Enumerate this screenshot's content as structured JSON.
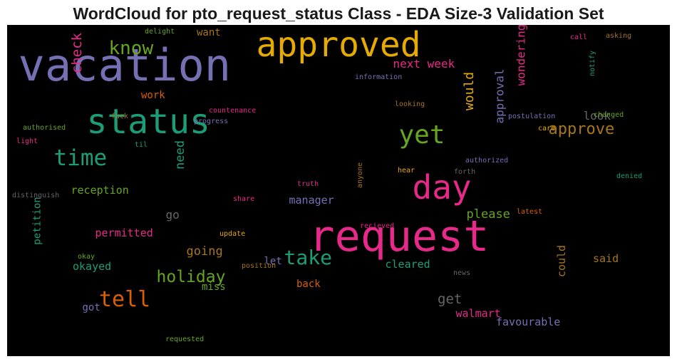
{
  "title": "WordCloud for pto_request_status Class - EDA Size-3 Validation Set",
  "chart_data": {
    "type": "wordcloud",
    "background": "#000000",
    "words": [
      {
        "text": "vacation",
        "color": "#7570b3",
        "weight": 62,
        "vertical": false,
        "pos": "top-left"
      },
      {
        "text": "request",
        "color": "#e7298a",
        "weight": 60,
        "vertical": false,
        "pos": "bottom-right"
      },
      {
        "text": "approved",
        "color": "#e6ab02",
        "weight": 48,
        "vertical": false,
        "pos": "top-center"
      },
      {
        "text": "status",
        "color": "#1b9e77",
        "weight": 48,
        "vertical": false,
        "pos": "center"
      },
      {
        "text": "day",
        "color": "#e7298a",
        "weight": 46,
        "vertical": false,
        "pos": "center-right"
      },
      {
        "text": "yet",
        "color": "#66a61e",
        "weight": 36,
        "vertical": false,
        "pos": "center"
      },
      {
        "text": "time",
        "color": "#1b9e77",
        "weight": 31,
        "vertical": false,
        "pos": "center-left"
      },
      {
        "text": "tell",
        "color": "#d95f02",
        "weight": 30,
        "vertical": false,
        "pos": "bottom-left"
      },
      {
        "text": "take",
        "color": "#1b9e77",
        "weight": 28,
        "vertical": false,
        "pos": "bottom-center"
      },
      {
        "text": "know",
        "color": "#66a61e",
        "weight": 26,
        "vertical": false,
        "pos": "top-left"
      },
      {
        "text": "holiday",
        "color": "#66a61e",
        "weight": 23,
        "vertical": false,
        "pos": "bottom-left"
      },
      {
        "text": "approve",
        "color": "#a6761d",
        "weight": 22,
        "vertical": false,
        "pos": "center-right"
      },
      {
        "text": "check",
        "color": "#e7298a",
        "weight": 19,
        "vertical": true,
        "pos": "top-left"
      },
      {
        "text": "would",
        "color": "#e6ab02",
        "weight": 18,
        "vertical": true,
        "pos": "center"
      },
      {
        "text": "approval",
        "color": "#7570b3",
        "weight": 16,
        "vertical": true,
        "pos": "center-right"
      },
      {
        "text": "wondering",
        "color": "#e7298a",
        "weight": 16,
        "vertical": true,
        "pos": "top-right"
      },
      {
        "text": "next week",
        "color": "#e7298a",
        "weight": 16,
        "vertical": false,
        "pos": "top-center"
      },
      {
        "text": "need",
        "color": "#1b9e77",
        "weight": 17,
        "vertical": true,
        "pos": "center-left"
      },
      {
        "text": "please",
        "color": "#66a61e",
        "weight": 17,
        "vertical": false,
        "pos": "center"
      },
      {
        "text": "get",
        "color": "#666666",
        "weight": 19,
        "vertical": false,
        "pos": "bottom-center"
      },
      {
        "text": "going",
        "color": "#a6761d",
        "weight": 17,
        "vertical": false,
        "pos": "bottom-left"
      },
      {
        "text": "look",
        "color": "#666666",
        "weight": 16,
        "vertical": false,
        "pos": "center-right"
      },
      {
        "text": "reception",
        "color": "#66a61e",
        "weight": 15,
        "vertical": false,
        "pos": "center-left"
      },
      {
        "text": "manager",
        "color": "#7570b3",
        "weight": 15,
        "vertical": false,
        "pos": "center"
      },
      {
        "text": "permitted",
        "color": "#e7298a",
        "weight": 15,
        "vertical": false,
        "pos": "bottom-left"
      },
      {
        "text": "cleared",
        "color": "#1b9e77",
        "weight": 15,
        "vertical": false,
        "pos": "bottom-center"
      },
      {
        "text": "okayed",
        "color": "#1b9e77",
        "weight": 15,
        "vertical": false,
        "pos": "bottom-left"
      },
      {
        "text": "walmart",
        "color": "#e7298a",
        "weight": 15,
        "vertical": false,
        "pos": "bottom-center"
      },
      {
        "text": "favourable",
        "color": "#7570b3",
        "weight": 15,
        "vertical": false,
        "pos": "bottom-right"
      },
      {
        "text": "said",
        "color": "#a6761d",
        "weight": 15,
        "vertical": false,
        "pos": "bottom-right"
      },
      {
        "text": "could",
        "color": "#a6761d",
        "weight": 15,
        "vertical": true,
        "pos": "bottom-right"
      },
      {
        "text": "go",
        "color": "#666666",
        "weight": 16,
        "vertical": false,
        "pos": "center-left"
      },
      {
        "text": "want",
        "color": "#a6761d",
        "weight": 14,
        "vertical": false,
        "pos": "top-left"
      },
      {
        "text": "work",
        "color": "#d95f02",
        "weight": 14,
        "vertical": false,
        "pos": "center-left"
      },
      {
        "text": "let",
        "color": "#7570b3",
        "weight": 14,
        "vertical": false,
        "pos": "bottom-center"
      },
      {
        "text": "miss",
        "color": "#66a61e",
        "weight": 14,
        "vertical": false,
        "pos": "bottom-left"
      },
      {
        "text": "back",
        "color": "#d95f02",
        "weight": 14,
        "vertical": false,
        "pos": "bottom-center"
      },
      {
        "text": "got",
        "color": "#7570b3",
        "weight": 14,
        "vertical": false,
        "pos": "bottom-left"
      },
      {
        "text": "petition",
        "color": "#1b9e77",
        "weight": 14,
        "vertical": true,
        "pos": "bottom-left"
      },
      {
        "text": "delight",
        "color": "#66a61e",
        "weight": 10,
        "vertical": false,
        "pos": "top-left"
      },
      {
        "text": "call",
        "color": "#e7298a",
        "weight": 10,
        "vertical": false,
        "pos": "top-right"
      },
      {
        "text": "asking",
        "color": "#a6761d",
        "weight": 10,
        "vertical": false,
        "pos": "top-right"
      },
      {
        "text": "information",
        "color": "#7570b3",
        "weight": 10,
        "vertical": false,
        "pos": "top-center"
      },
      {
        "text": "notify",
        "color": "#1b9e77",
        "weight": 10,
        "vertical": true,
        "pos": "top-right"
      },
      {
        "text": "looking",
        "color": "#a6761d",
        "weight": 10,
        "vertical": false,
        "pos": "center"
      },
      {
        "text": "fuck",
        "color": "#a6761d",
        "weight": 10,
        "vertical": false,
        "pos": "center-left"
      },
      {
        "text": "countenance",
        "color": "#e7298a",
        "weight": 10,
        "vertical": false,
        "pos": "center"
      },
      {
        "text": "progress",
        "color": "#7570b3",
        "weight": 10,
        "vertical": false,
        "pos": "center"
      },
      {
        "text": "postulation",
        "color": "#7570b3",
        "weight": 10,
        "vertical": false,
        "pos": "center-right"
      },
      {
        "text": "changed",
        "color": "#66a61e",
        "weight": 10,
        "vertical": false,
        "pos": "center-right"
      },
      {
        "text": "care",
        "color": "#e6ab02",
        "weight": 10,
        "vertical": false,
        "pos": "center-right"
      },
      {
        "text": "authorised",
        "color": "#66a61e",
        "weight": 10,
        "vertical": false,
        "pos": "center-left"
      },
      {
        "text": "light",
        "color": "#e7298a",
        "weight": 10,
        "vertical": false,
        "pos": "center-left"
      },
      {
        "text": "til",
        "color": "#1b9e77",
        "weight": 10,
        "vertical": false,
        "pos": "center-left"
      },
      {
        "text": "authorized",
        "color": "#7570b3",
        "weight": 10,
        "vertical": false,
        "pos": "center-right"
      },
      {
        "text": "anyone",
        "color": "#a6761d",
        "weight": 10,
        "vertical": true,
        "pos": "center"
      },
      {
        "text": "hear",
        "color": "#e6ab02",
        "weight": 10,
        "vertical": false,
        "pos": "center"
      },
      {
        "text": "forth",
        "color": "#666666",
        "weight": 10,
        "vertical": false,
        "pos": "center-right"
      },
      {
        "text": "denied",
        "color": "#1b9e77",
        "weight": 10,
        "vertical": false,
        "pos": "center-right"
      },
      {
        "text": "truth",
        "color": "#e7298a",
        "weight": 10,
        "vertical": false,
        "pos": "center"
      },
      {
        "text": "distinguish",
        "color": "#666666",
        "weight": 10,
        "vertical": false,
        "pos": "center-left"
      },
      {
        "text": "share",
        "color": "#e7298a",
        "weight": 10,
        "vertical": false,
        "pos": "center"
      },
      {
        "text": "latest",
        "color": "#d95f02",
        "weight": 10,
        "vertical": false,
        "pos": "center-right"
      },
      {
        "text": "update",
        "color": "#e6ab02",
        "weight": 10,
        "vertical": false,
        "pos": "bottom-center"
      },
      {
        "text": "recieved",
        "color": "#e7298a",
        "weight": 10,
        "vertical": false,
        "pos": "bottom-center"
      },
      {
        "text": "okay",
        "color": "#66a61e",
        "weight": 10,
        "vertical": false,
        "pos": "bottom-left"
      },
      {
        "text": "position",
        "color": "#a6761d",
        "weight": 10,
        "vertical": false,
        "pos": "bottom-center"
      },
      {
        "text": "news",
        "color": "#666666",
        "weight": 10,
        "vertical": false,
        "pos": "bottom-center"
      },
      {
        "text": "requested",
        "color": "#66a61e",
        "weight": 10,
        "vertical": false,
        "pos": "bottom-left"
      }
    ]
  }
}
